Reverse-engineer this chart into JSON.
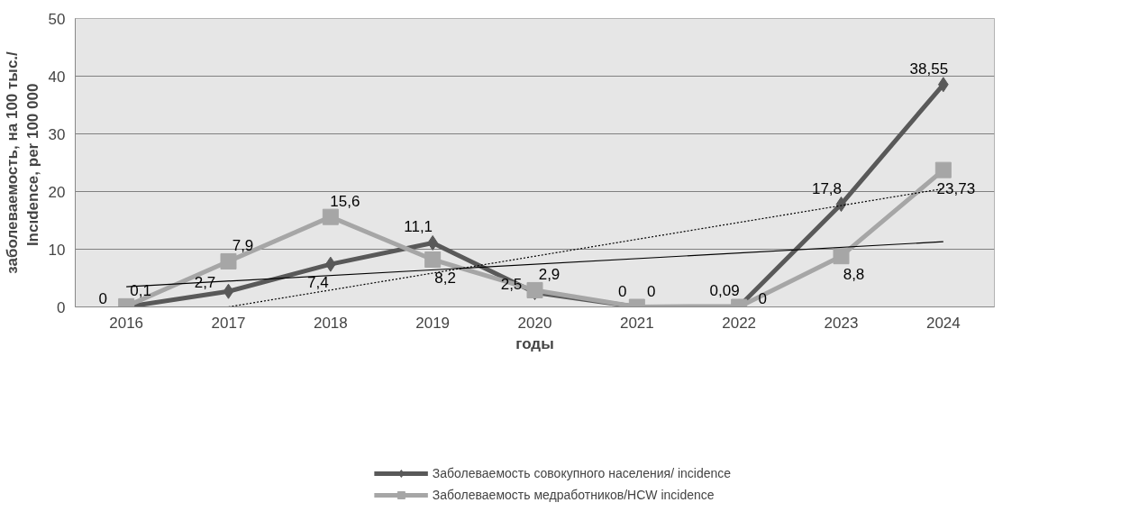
{
  "chart_data": {
    "type": "line",
    "xlabel": "годы",
    "ylabel": "заболеваемость, на 100 тыс./\nIncıdence,  per 100 000",
    "x": [
      2016,
      2017,
      2018,
      2019,
      2020,
      2021,
      2022,
      2023,
      2024
    ],
    "xlim": [
      2015.5,
      2024.5
    ],
    "xticks": [
      2016,
      2017,
      2018,
      2019,
      2020,
      2021,
      2022,
      2023,
      2024
    ],
    "ylim": [
      0,
      50
    ],
    "yticks": [
      0,
      10,
      20,
      30,
      40,
      50
    ],
    "grid": "y",
    "legend": "bottom",
    "line_style": "solid",
    "series": [
      {
        "name": "Заболеваемость совокупного населения/ incidence",
        "color": "#595959",
        "marker": "diamond",
        "values": [
          0,
          2.7,
          7.4,
          11.1,
          2.5,
          0,
          0.09,
          17.8,
          38.55
        ],
        "value_labels": [
          "0",
          "2,7",
          "7,4",
          "11,1",
          "2,5",
          "0",
          "0,09",
          "17,8",
          "38,55"
        ]
      },
      {
        "name": "Заболеваемость медработников/HCW incidence",
        "color": "#a6a6a6",
        "marker": "square",
        "values": [
          0.1,
          7.9,
          15.6,
          8.2,
          2.9,
          0,
          0,
          8.8,
          23.73
        ],
        "value_labels": [
          "0,1",
          "7,9",
          "15,6",
          "8,2",
          "2,9",
          "0",
          "0",
          "8,8",
          "23,73"
        ]
      },
      {
        "color": "#000000",
        "marker": "none",
        "line_style": "dotted",
        "x": [
          2017,
          2024
        ],
        "values": [
          0,
          20.5
        ]
      },
      {
        "color": "#000000",
        "marker": "none",
        "line_style": "solid",
        "x": [
          2016,
          2024
        ],
        "values": [
          3.5,
          11.3
        ]
      }
    ]
  }
}
